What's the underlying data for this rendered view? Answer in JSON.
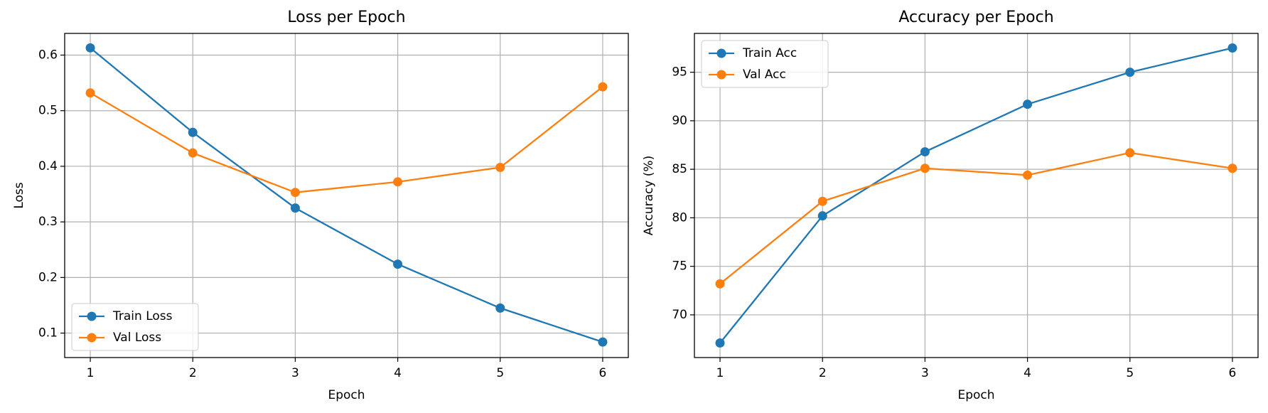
{
  "chart_data": [
    {
      "type": "line",
      "title": "Loss per Epoch",
      "x_label": "Epoch",
      "y_label": "Loss",
      "x": [
        1,
        2,
        3,
        4,
        5,
        6
      ],
      "series": [
        {
          "name": "Train Loss",
          "color": "#1f77b4",
          "values": [
            0.613,
            0.461,
            0.325,
            0.224,
            0.145,
            0.084
          ]
        },
        {
          "name": "Val Loss",
          "color": "#ff7f0e",
          "values": [
            0.532,
            0.424,
            0.353,
            0.372,
            0.398,
            0.543
          ]
        }
      ],
      "xlim": [
        0.75,
        6.25
      ],
      "xticks": [
        1,
        2,
        3,
        4,
        5,
        6
      ],
      "ylim": [
        0.056,
        0.639
      ],
      "yticks": [
        0.1,
        0.2,
        0.3,
        0.4,
        0.5,
        0.6
      ],
      "grid": true,
      "legend": "lower left",
      "marker": "circle"
    },
    {
      "type": "line",
      "title": "Accuracy per Epoch",
      "x_label": "Epoch",
      "y_label": "Accuracy (%)",
      "x": [
        1,
        2,
        3,
        4,
        5,
        6
      ],
      "series": [
        {
          "name": "Train Acc",
          "color": "#1f77b4",
          "values": [
            67.1,
            80.2,
            86.8,
            91.7,
            95.0,
            97.5
          ]
        },
        {
          "name": "Val Acc",
          "color": "#ff7f0e",
          "values": [
            73.2,
            81.7,
            85.1,
            84.4,
            86.7,
            85.1
          ]
        }
      ],
      "xlim": [
        0.75,
        6.25
      ],
      "xticks": [
        1,
        2,
        3,
        4,
        5,
        6
      ],
      "ylim": [
        65.6,
        99
      ],
      "yticks": [
        70,
        75,
        80,
        85,
        90,
        95
      ],
      "grid": true,
      "legend": "upper left",
      "marker": "circle"
    }
  ]
}
